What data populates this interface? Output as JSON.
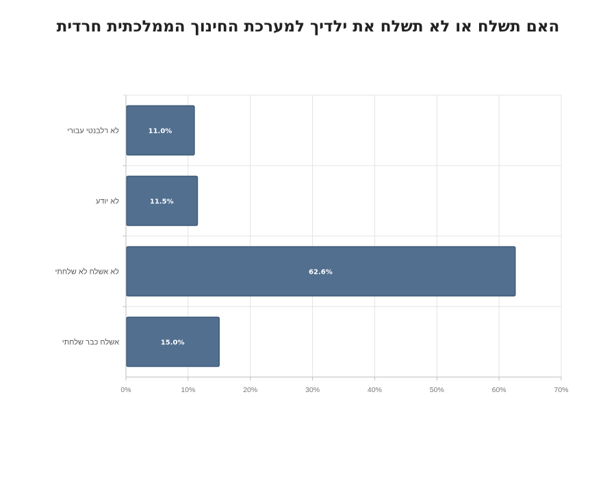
{
  "chart_data": {
    "type": "bar",
    "orientation": "horizontal",
    "title": "האם תשלח או לא תשלח את ילדיך למערכת החינוך הממלכתית חרדית",
    "xlabel": "",
    "ylabel": "",
    "categories": [
      "לא רלבנטי עבורי",
      "לא יודע",
      "לא אשלח לא שלחתי",
      "אשלח כבר שלחתי"
    ],
    "values": [
      11.0,
      11.5,
      62.6,
      15.0
    ],
    "data_labels": [
      "11.0%",
      "11.5%",
      "62.6%",
      "15.0%"
    ],
    "xlim": [
      0,
      70
    ],
    "x_ticks": [
      0,
      10,
      20,
      30,
      40,
      50,
      60,
      70
    ],
    "x_tick_labels": [
      "0%",
      "10%",
      "20%",
      "30%",
      "40%",
      "50%",
      "60%",
      "70%"
    ],
    "grid": true,
    "legend": "none",
    "colors": {
      "bar": "#526f8f",
      "bar_edge": "#3f5a78",
      "grid": "#e3e3e3",
      "axis": "#bdbdbd"
    }
  }
}
